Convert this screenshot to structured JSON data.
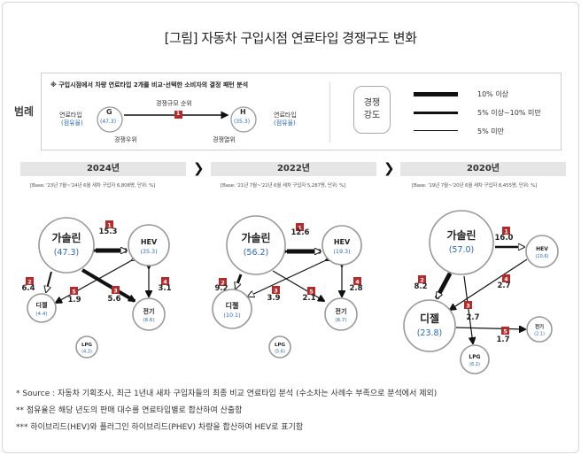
{
  "title": "[그림] 자동차 구입시점 연료타입 경쟁구도 변화",
  "legend": {
    "label": "범례",
    "note": "※ 구입시점에서 차량 연료타입 2개를 비교·선택한 소비자의 결정 패턴 분석",
    "node_left_code": "G",
    "node_left_value": "(47.3)",
    "node_left_name": "연료타입",
    "node_left_sub": "(점유율)",
    "node_right_code": "H",
    "node_right_value": "(35.3)",
    "node_right_name": "연료타입",
    "node_right_sub": "(점유율)",
    "rank_label": "경쟁규모 순위",
    "rank_badge": "1",
    "advantage_label": "경쟁우위",
    "disadvantage_label": "경쟁열위",
    "strength_title_1": "경쟁",
    "strength_title_2": "강도",
    "strength_high": "10% 이상",
    "strength_mid": "5% 이상~10% 미만",
    "strength_low": "5% 미만"
  },
  "arrow_icon": "chevron-right-icon",
  "panels": [
    {
      "year": "2024년",
      "base": "[Base: '23년 7월~'24년 6월 새차 구입자 6,808명, 단위: %]",
      "nodes": [
        {
          "name": "가솔린",
          "value": "(47.3)"
        },
        {
          "name": "HEV",
          "value": "(35.3)"
        },
        {
          "name": "디젤",
          "value": "(4.4)"
        },
        {
          "name": "전기",
          "value": "(8.6)"
        },
        {
          "name": "LPG",
          "value": "(4.3)"
        }
      ],
      "edges": [
        {
          "rank": "1",
          "value": "15.3"
        },
        {
          "rank": "2",
          "value": "6.4"
        },
        {
          "rank": "3",
          "value": "5.6"
        },
        {
          "rank": "4",
          "value": "3.1"
        },
        {
          "rank": "5",
          "value": "1.9"
        }
      ]
    },
    {
      "year": "2022년",
      "base": "[Base: '21년 7월~'22년 6월 새차 구입자 5,287명, 단위: %]",
      "nodes": [
        {
          "name": "가솔린",
          "value": "(56.2)"
        },
        {
          "name": "HEV",
          "value": "(19.3)"
        },
        {
          "name": "디젤",
          "value": "(10.1)"
        },
        {
          "name": "전기",
          "value": "(8.7)"
        },
        {
          "name": "LPG",
          "value": "(5.6)"
        }
      ],
      "edges": [
        {
          "rank": "1",
          "value": "12.6"
        },
        {
          "rank": "2",
          "value": "9.2"
        },
        {
          "rank": "3",
          "value": "3.9"
        },
        {
          "rank": "4",
          "value": "2.8"
        },
        {
          "rank": "5",
          "value": "2.1"
        }
      ]
    },
    {
      "year": "2020년",
      "base": "[Base: '19년 7월~'20년 6월 새차 구입자 8,455명, 단위: %]",
      "nodes": [
        {
          "name": "가솔린",
          "value": "(57.0)"
        },
        {
          "name": "HEV",
          "value": "(10.6)"
        },
        {
          "name": "디젤",
          "value": "(23.8)"
        },
        {
          "name": "전기",
          "value": "(2.1)"
        },
        {
          "name": "LPG",
          "value": "(6.2)"
        }
      ],
      "edges": [
        {
          "rank": "1",
          "value": "16.0"
        },
        {
          "rank": "2",
          "value": "8.2"
        },
        {
          "rank": "3",
          "value": "2.7"
        },
        {
          "rank": "4",
          "value": "2.7"
        },
        {
          "rank": "5",
          "value": "1.7"
        }
      ]
    }
  ],
  "footnotes": [
    "* Source : 자동차 기획조사, 최근 1년내 새차 구입자들의 최종 비교 연료타입 분석 (수소차는 사례수 부족으로 분석에서 제외)",
    "** 점유율은 해당 년도의 판매 대수를 연료타입별로 합산하여 산출함",
    "*** 하이브리드(HEV)와 플러그인 하이브리드(PHEV) 차량을 합산하여 HEV로 표기함"
  ],
  "colors": {
    "badge": "#b52a2a",
    "share": "#2a67b8",
    "node_border": "#999999",
    "year_bar": "#e6e6e6"
  }
}
